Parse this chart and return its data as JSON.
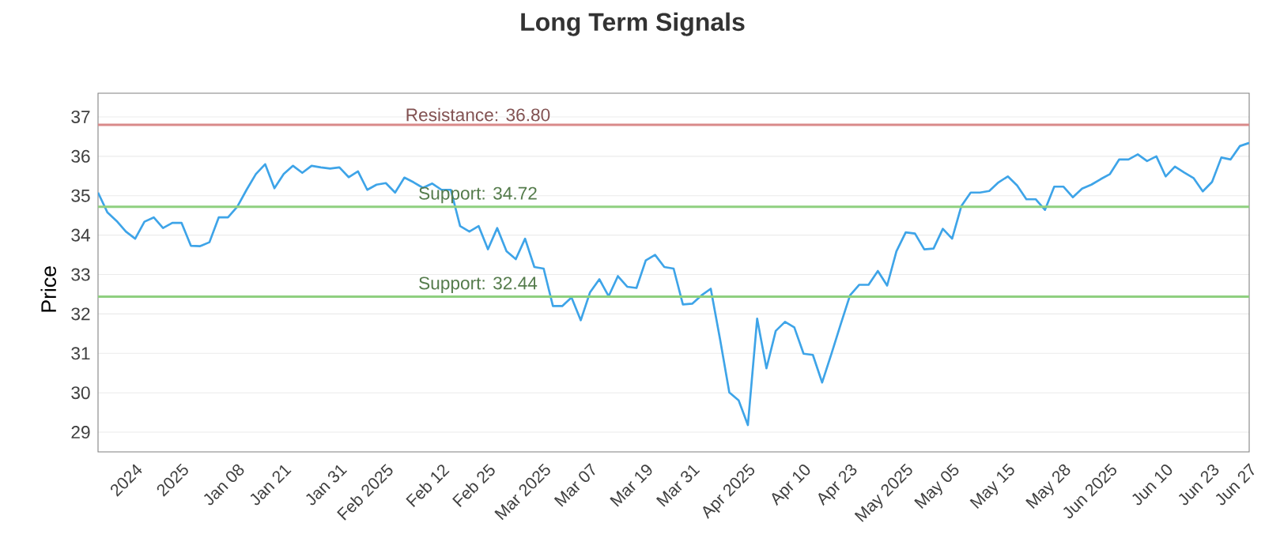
{
  "chart_data": {
    "type": "line",
    "title": "Long Term Signals",
    "ylabel": "Price",
    "categories": [
      null,
      null,
      null,
      null,
      "2024",
      null,
      null,
      null,
      null,
      "2025",
      null,
      null,
      null,
      null,
      null,
      "Jan 08",
      null,
      null,
      null,
      null,
      "Jan 21",
      null,
      null,
      null,
      null,
      null,
      "Jan 31",
      null,
      null,
      null,
      null,
      "Feb 2025",
      null,
      null,
      null,
      null,
      null,
      "Feb 12",
      null,
      null,
      null,
      null,
      "Feb 25",
      null,
      null,
      null,
      null,
      null,
      "Mar 2025",
      null,
      null,
      null,
      null,
      "Mar 07",
      null,
      null,
      null,
      null,
      null,
      "Mar 19",
      null,
      null,
      null,
      null,
      "Mar 31",
      null,
      null,
      null,
      null,
      null,
      "Apr 2025",
      null,
      null,
      null,
      null,
      null,
      "Apr 10",
      null,
      null,
      null,
      null,
      "Apr 23",
      null,
      null,
      null,
      null,
      null,
      "May 2025",
      null,
      null,
      null,
      null,
      "May 05",
      null,
      null,
      null,
      null,
      null,
      "May 15",
      null,
      null,
      null,
      null,
      null,
      "May 28",
      null,
      null,
      null,
      null,
      "Jun 2025",
      null,
      null,
      null,
      null,
      null,
      "Jun 10",
      null,
      null,
      null,
      null,
      "Jun 23",
      null,
      null,
      null,
      "Jun 27"
    ],
    "series": [
      {
        "color": "#3ea4e8",
        "values": [
          35.08,
          34.58,
          34.36,
          34.09,
          33.91,
          34.34,
          34.45,
          34.18,
          34.31,
          34.31,
          33.73,
          33.72,
          33.82,
          34.45,
          34.45,
          34.72,
          35.15,
          35.55,
          35.8,
          35.19,
          35.55,
          35.76,
          35.58,
          35.76,
          35.72,
          35.69,
          35.72,
          35.47,
          35.62,
          35.15,
          35.28,
          35.32,
          35.08,
          35.46,
          35.34,
          35.2,
          35.31,
          35.15,
          35.15,
          34.23,
          34.09,
          34.23,
          33.64,
          34.18,
          33.59,
          33.39,
          33.91,
          33.19,
          33.15,
          32.2,
          32.2,
          32.42,
          31.84,
          32.55,
          32.88,
          32.45,
          32.96,
          32.69,
          32.66,
          33.36,
          33.5,
          33.19,
          33.15,
          32.24,
          32.26,
          32.47,
          32.64,
          31.36,
          30.01,
          29.81,
          29.18,
          31.88,
          30.62,
          31.57,
          31.8,
          31.66,
          30.99,
          30.96,
          30.26,
          30.99,
          31.74,
          32.47,
          32.74,
          32.74,
          33.09,
          32.72,
          33.59,
          34.07,
          34.04,
          33.64,
          33.66,
          34.16,
          33.91,
          34.74,
          35.08,
          35.08,
          35.12,
          35.34,
          35.49,
          35.26,
          34.91,
          34.91,
          34.64,
          35.23,
          35.23,
          34.96,
          35.18,
          35.28,
          35.42,
          35.55,
          35.92,
          35.92,
          36.05,
          35.88,
          36.0,
          35.49,
          35.74,
          35.59,
          35.45,
          35.11,
          35.35,
          35.97,
          35.92,
          36.26,
          36.34
        ]
      }
    ],
    "ylim": [
      28.5,
      37.6
    ],
    "yticks": [
      29,
      30,
      31,
      32,
      33,
      34,
      35,
      36,
      37
    ],
    "grid": "y",
    "ref_lines": [
      {
        "axis": "y",
        "value": 36.8,
        "label": "Resistance: 36.80",
        "color": "#d98a8a"
      },
      {
        "axis": "y",
        "value": 34.72,
        "label": "Support: 34.72",
        "color": "#8fd080"
      },
      {
        "axis": "y",
        "value": 32.44,
        "label": "Support: 32.44",
        "color": "#8fd080"
      }
    ]
  }
}
